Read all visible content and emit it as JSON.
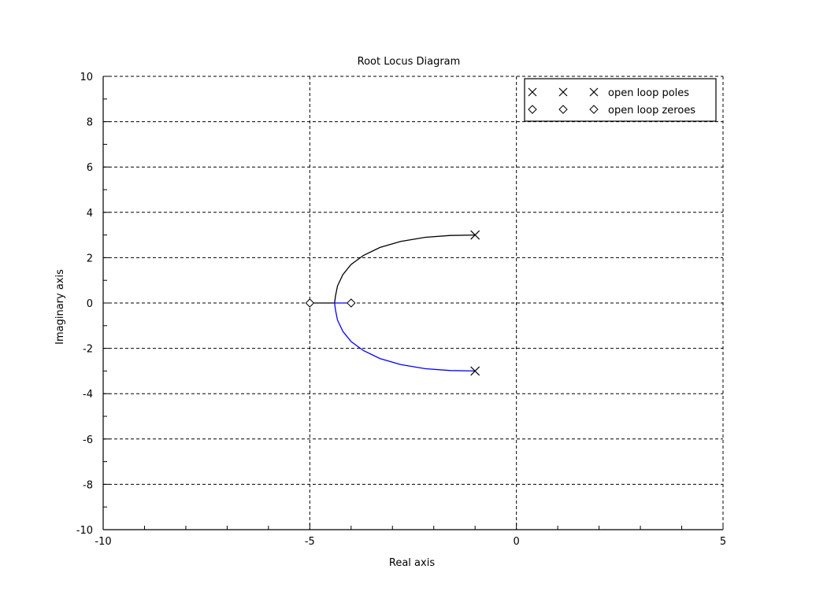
{
  "chart_data": {
    "type": "line",
    "title": "Root Locus Diagram",
    "xlabel": "Real axis",
    "ylabel": "Imaginary axis",
    "xlim": [
      -10,
      5
    ],
    "ylim": [
      -10,
      10
    ],
    "x_ticks": [
      -10,
      -5,
      0,
      5
    ],
    "y_ticks": [
      -10,
      -8,
      -6,
      -4,
      -2,
      0,
      2,
      4,
      6,
      8,
      10
    ],
    "grid": true,
    "legend_position": "top-right",
    "series": [
      {
        "color": "#000000",
        "points": [
          [
            -1.0,
            3.0
          ],
          [
            -1.6,
            2.98
          ],
          [
            -2.2,
            2.9
          ],
          [
            -2.8,
            2.72
          ],
          [
            -3.3,
            2.45
          ],
          [
            -3.7,
            2.1
          ],
          [
            -4.0,
            1.7
          ],
          [
            -4.2,
            1.25
          ],
          [
            -4.33,
            0.75
          ],
          [
            -4.38,
            0.3
          ],
          [
            -4.4,
            0.0
          ],
          [
            -4.55,
            0.0
          ],
          [
            -4.8,
            0.0
          ],
          [
            -5.0,
            0.0
          ]
        ]
      },
      {
        "color": "#0000ff",
        "points": [
          [
            -1.0,
            -3.0
          ],
          [
            -1.6,
            -2.98
          ],
          [
            -2.2,
            -2.9
          ],
          [
            -2.8,
            -2.72
          ],
          [
            -3.3,
            -2.45
          ],
          [
            -3.7,
            -2.1
          ],
          [
            -4.0,
            -1.7
          ],
          [
            -4.2,
            -1.25
          ],
          [
            -4.33,
            -0.75
          ],
          [
            -4.38,
            -0.3
          ],
          [
            -4.4,
            0.0
          ],
          [
            -4.3,
            0.0
          ],
          [
            -4.15,
            0.0
          ],
          [
            -4.0,
            0.0
          ]
        ]
      }
    ],
    "poles": [
      [
        -1,
        3
      ],
      [
        -1,
        -3
      ]
    ],
    "zeros": [
      [
        -5,
        0
      ],
      [
        -4,
        0
      ]
    ],
    "legend": [
      {
        "label": "open loop poles",
        "marker": "x-icon"
      },
      {
        "label": "open loop zeroes",
        "marker": "diamond-icon"
      }
    ]
  }
}
